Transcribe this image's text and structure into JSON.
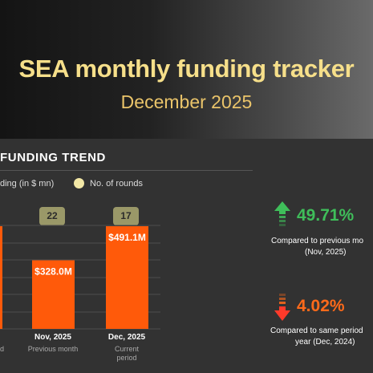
{
  "header": {
    "title": "SEA monthly funding tracker",
    "subtitle": "December 2025"
  },
  "section": {
    "title": "FUNDING TREND",
    "legend_funding": "ding (in $ mn)",
    "legend_rounds": "No. of rounds"
  },
  "chart_data": {
    "type": "bar",
    "categories": [
      "Nov, 2025",
      "Dec, 2025"
    ],
    "category_notes": [
      "Previous month",
      "Current\nperiod"
    ],
    "values": [
      328.0,
      491.1
    ],
    "value_labels": [
      "$328.0M",
      "$491.1M"
    ],
    "rounds": [
      "22",
      "17"
    ],
    "cut_off_left_bar_value": 491.1,
    "cut_off_left_note": "d",
    "ylabel": "Funding (in $ mn)",
    "grid": true,
    "bar_color": "#ff5a0a"
  },
  "kpis": [
    {
      "value": "49.71%",
      "direction": "up",
      "color": "#3fbe5a",
      "caption_line1": "Compared to previous mo",
      "caption_line2": "(Nov, 2025)"
    },
    {
      "value": "4.02%",
      "direction": "down",
      "color": "#ff6a1a",
      "caption_line1": "Compared to same period",
      "caption_line2": "year (Dec, 2024)"
    }
  ]
}
